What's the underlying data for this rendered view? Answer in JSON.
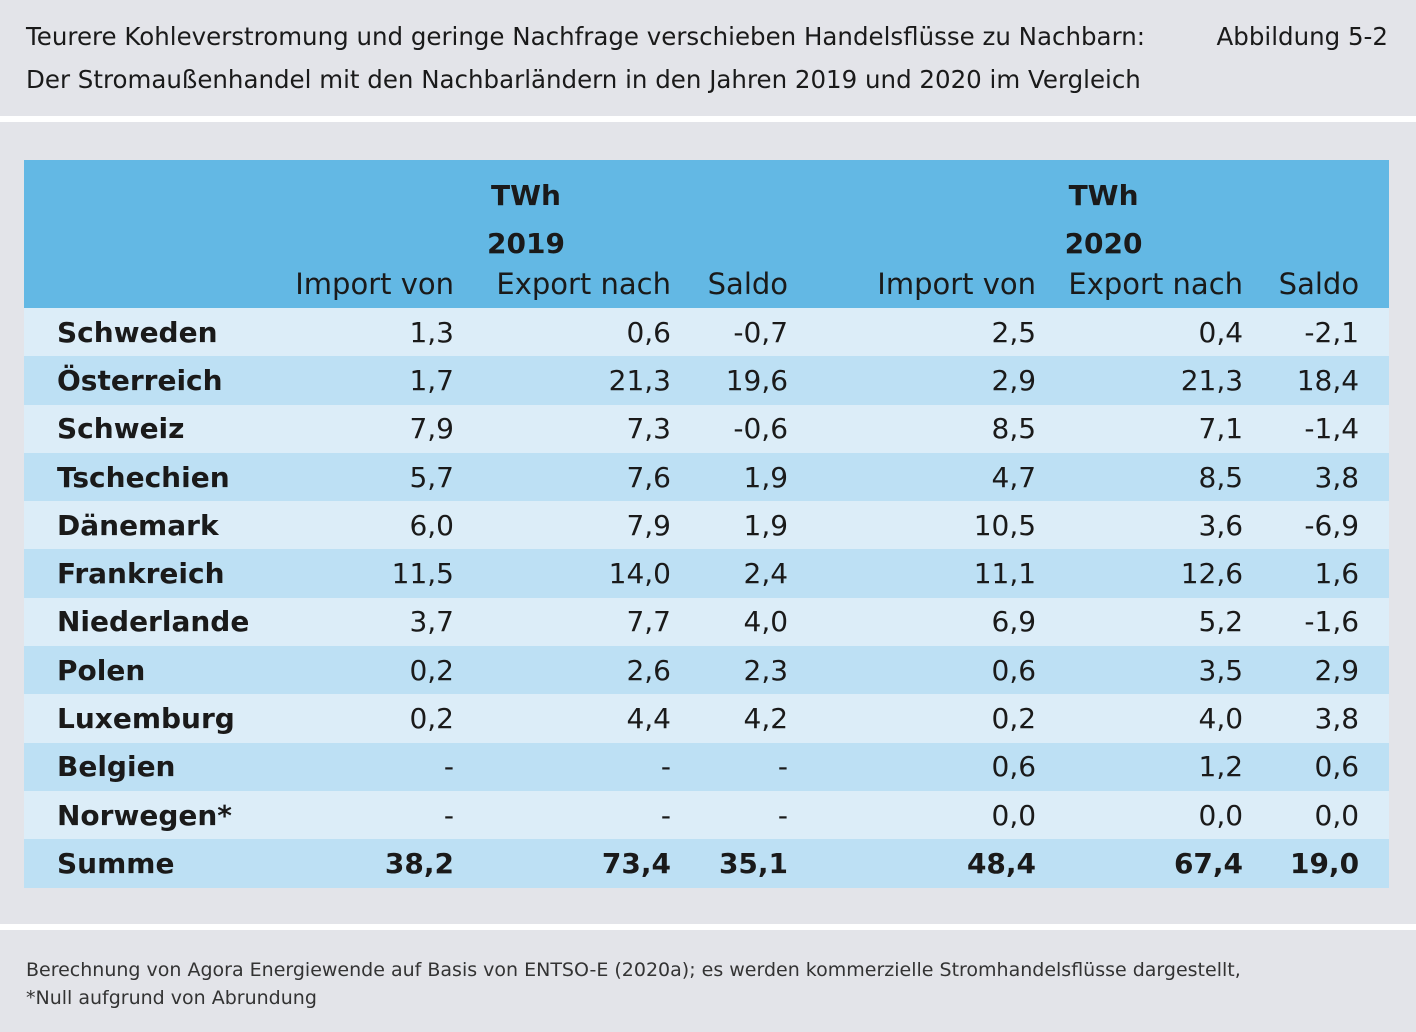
{
  "header": {
    "title_line1": "Teurere Kohleverstromung und geringe Nachfrage verschieben Handelsflüsse zu Nachbarn:",
    "title_line2": "Der Stromaußenhandel mit den Nachbarländern in den Jahren 2019 und 2020 im Vergleich",
    "figure_label": "Abbildung 5-2"
  },
  "table": {
    "groups": [
      {
        "unit": "TWh",
        "year": "2019"
      },
      {
        "unit": "TWh",
        "year": "2020"
      }
    ],
    "columns": [
      "Import von",
      "Export nach",
      "Saldo",
      "Import von",
      "Export nach",
      "Saldo"
    ],
    "rows": [
      {
        "country": "Schweden",
        "values": [
          "1,3",
          "0,6",
          "-0,7",
          "2,5",
          "0,4",
          "-2,1"
        ]
      },
      {
        "country": "Österreich",
        "values": [
          "1,7",
          "21,3",
          "19,6",
          "2,9",
          "21,3",
          "18,4"
        ]
      },
      {
        "country": "Schweiz",
        "values": [
          "7,9",
          "7,3",
          "-0,6",
          "8,5",
          "7,1",
          "-1,4"
        ]
      },
      {
        "country": "Tschechien",
        "values": [
          "5,7",
          "7,6",
          "1,9",
          "4,7",
          "8,5",
          "3,8"
        ]
      },
      {
        "country": "Dänemark",
        "values": [
          "6,0",
          "7,9",
          "1,9",
          "10,5",
          "3,6",
          "-6,9"
        ]
      },
      {
        "country": "Frankreich",
        "values": [
          "11,5",
          "14,0",
          "2,4",
          "11,1",
          "12,6",
          "1,6"
        ]
      },
      {
        "country": "Niederlande",
        "values": [
          "3,7",
          "7,7",
          "4,0",
          "6,9",
          "5,2",
          "-1,6"
        ]
      },
      {
        "country": "Polen",
        "values": [
          "0,2",
          "2,6",
          "2,3",
          "0,6",
          "3,5",
          "2,9"
        ]
      },
      {
        "country": "Luxemburg",
        "values": [
          "0,2",
          "4,4",
          "4,2",
          "0,2",
          "4,0",
          "3,8"
        ]
      },
      {
        "country": "Belgien",
        "values": [
          "-",
          "-",
          "-",
          "0,6",
          "1,2",
          "0,6"
        ]
      },
      {
        "country": "Norwegen*",
        "values": [
          "-",
          "-",
          "-",
          "0,0",
          "0,0",
          "0,0"
        ]
      }
    ],
    "total": {
      "label": "Summe",
      "values": [
        "38,2",
        "73,4",
        "35,1",
        "48,4",
        "67,4",
        "19,0"
      ]
    }
  },
  "footer": {
    "line1": "Berechnung von Agora Energiewende auf Basis von ENTSO-E (2020a); es werden kommerzielle Stromhandelsflüsse dargestellt,",
    "line2": "*Null aufgrund von Abrundung"
  }
}
